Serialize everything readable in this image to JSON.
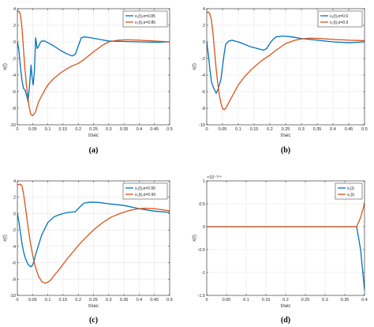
{
  "colors": {
    "x1": "#0072BD",
    "x2": "#D95319",
    "grid": "#e6e6e6",
    "axis": "#262626"
  },
  "chart_data": [
    {
      "type": "line",
      "caption": "(a)",
      "xlabel": "t/sec",
      "ylabel": "x(t)",
      "xlim": [
        0,
        0.5
      ],
      "ylim": [
        -10,
        4
      ],
      "xticks": [
        0,
        0.05,
        0.1,
        0.15,
        0.2,
        0.25,
        0.3,
        0.35,
        0.4,
        0.45,
        0.5
      ],
      "xtick_labels": [
        "0",
        "0.05",
        "0.1",
        "0.15",
        "0.2",
        "0.25",
        "0.3",
        "0.35",
        "0.4",
        "0.45",
        "0.5"
      ],
      "yticks": [
        -10,
        -8,
        -6,
        -4,
        -2,
        0,
        2,
        4
      ],
      "ytick_labels": [
        "-10",
        "-8",
        "-6",
        "-4",
        "-2",
        "0",
        "2",
        "4"
      ],
      "exponent_label": "",
      "grid": true,
      "legend_position": "top-right",
      "series": [
        {
          "name": "x₁(t),α=0.85",
          "color_key": "x1",
          "x": [
            0,
            0.005,
            0.01,
            0.015,
            0.02,
            0.025,
            0.03,
            0.035,
            0.04,
            0.045,
            0.048,
            0.052,
            0.056,
            0.06,
            0.065,
            0.07,
            0.075,
            0.08,
            0.09,
            0.1,
            0.12,
            0.14,
            0.16,
            0.18,
            0.19,
            0.2,
            0.21,
            0.22,
            0.24,
            0.27,
            0.3,
            0.35,
            0.4,
            0.45,
            0.5
          ],
          "y": [
            0,
            -1,
            -3,
            -4.6,
            -5.6,
            -5.8,
            -6.4,
            -7.2,
            -5.2,
            -2.8,
            -4.2,
            -5.2,
            -3.5,
            0.5,
            -0.8,
            -0.5,
            -0.1,
            0.1,
            0.1,
            -0.1,
            -0.5,
            -1.0,
            -1.4,
            -1.7,
            -1.5,
            -0.5,
            0.5,
            0.6,
            0.5,
            0.3,
            0.1,
            0.05,
            0.0,
            -0.05,
            0.0
          ]
        },
        {
          "name": "x₂(t),α=0.85",
          "color_key": "x2",
          "x": [
            0,
            0.005,
            0.01,
            0.015,
            0.02,
            0.025,
            0.03,
            0.035,
            0.04,
            0.045,
            0.05,
            0.055,
            0.06,
            0.065,
            0.07,
            0.08,
            0.09,
            0.1,
            0.12,
            0.14,
            0.16,
            0.18,
            0.2,
            0.22,
            0.25,
            0.28,
            0.3,
            0.33,
            0.36,
            0.4,
            0.45,
            0.5
          ],
          "y": [
            3.6,
            3.7,
            3.3,
            1.8,
            -0.8,
            -3.3,
            -5.3,
            -6.9,
            -8.1,
            -8.8,
            -8.9,
            -8.7,
            -8.4,
            -7.8,
            -7.2,
            -6.5,
            -5.8,
            -5.2,
            -4.4,
            -3.8,
            -3.3,
            -2.9,
            -2.6,
            -2.1,
            -1.2,
            -0.4,
            0.0,
            0.2,
            0.25,
            0.2,
            0.1,
            0.0
          ]
        }
      ]
    },
    {
      "type": "line",
      "caption": "(b)",
      "xlabel": "t/sec",
      "ylabel": "x(t)",
      "xlim": [
        0,
        0.5
      ],
      "ylim": [
        -10,
        4
      ],
      "xticks": [
        0,
        0.05,
        0.1,
        0.15,
        0.2,
        0.25,
        0.3,
        0.35,
        0.4,
        0.45,
        0.5
      ],
      "xtick_labels": [
        "0",
        "0.05",
        "0.1",
        "0.15",
        "0.2",
        "0.25",
        "0.3",
        "0.35",
        "0.4",
        "0.45",
        "0.5"
      ],
      "yticks": [
        -10,
        -8,
        -6,
        -4,
        -2,
        0,
        2,
        4
      ],
      "ytick_labels": [
        "-10",
        "-8",
        "-6",
        "-4",
        "-2",
        "0",
        "2",
        "4"
      ],
      "exponent_label": "",
      "grid": true,
      "legend_position": "top-right",
      "series": [
        {
          "name": "x₁(t),α=0.9",
          "color_key": "x1",
          "x": [
            0,
            0.005,
            0.01,
            0.015,
            0.02,
            0.025,
            0.03,
            0.035,
            0.04,
            0.045,
            0.05,
            0.055,
            0.06,
            0.07,
            0.08,
            0.09,
            0.1,
            0.12,
            0.14,
            0.16,
            0.18,
            0.19,
            0.2,
            0.21,
            0.22,
            0.24,
            0.27,
            0.3,
            0.35,
            0.4,
            0.45,
            0.5
          ],
          "y": [
            0,
            -1.5,
            -3.3,
            -4.8,
            -5.4,
            -5.8,
            -6.2,
            -5.8,
            -5.2,
            -4.5,
            -3.0,
            -1.5,
            -0.3,
            0.1,
            0.2,
            0.1,
            0.0,
            -0.3,
            -0.6,
            -0.8,
            -1.0,
            -0.8,
            -0.2,
            0.3,
            0.6,
            0.7,
            0.6,
            0.4,
            0.2,
            0.0,
            -0.1,
            0.0
          ]
        },
        {
          "name": "x₂(t),α=0.9",
          "color_key": "x2",
          "x": [
            0,
            0.005,
            0.01,
            0.015,
            0.02,
            0.025,
            0.03,
            0.035,
            0.04,
            0.045,
            0.05,
            0.055,
            0.06,
            0.065,
            0.07,
            0.08,
            0.09,
            0.1,
            0.12,
            0.14,
            0.16,
            0.18,
            0.2,
            0.22,
            0.25,
            0.28,
            0.3,
            0.33,
            0.36,
            0.4,
            0.45,
            0.5
          ],
          "y": [
            3.5,
            3.6,
            3.4,
            2.6,
            1.0,
            -1.2,
            -3.3,
            -5.0,
            -6.4,
            -7.4,
            -8.0,
            -8.2,
            -8.0,
            -7.7,
            -7.3,
            -6.6,
            -5.9,
            -5.2,
            -4.2,
            -3.4,
            -2.7,
            -2.1,
            -1.6,
            -1.0,
            -0.2,
            0.2,
            0.35,
            0.45,
            0.4,
            0.3,
            0.2,
            0.15
          ]
        }
      ]
    },
    {
      "type": "line",
      "caption": "(c)",
      "xlabel": "t/sec",
      "ylabel": "x(t)",
      "xlim": [
        0,
        0.5
      ],
      "ylim": [
        -10,
        4
      ],
      "xticks": [
        0,
        0.05,
        0.1,
        0.15,
        0.2,
        0.25,
        0.3,
        0.35,
        0.4,
        0.45,
        0.5
      ],
      "xtick_labels": [
        "0",
        "0.05",
        "0.1",
        "0.15",
        "0.2",
        "0.25",
        "0.3",
        "0.35",
        "0.4",
        "0.45",
        "0.5"
      ],
      "yticks": [
        -10,
        -8,
        -6,
        -4,
        -2,
        0,
        2,
        4
      ],
      "ytick_labels": [
        "-10",
        "-8",
        "-6",
        "-4",
        "-2",
        "0",
        "2",
        "4"
      ],
      "exponent_label": "",
      "grid": true,
      "legend_position": "top-right",
      "series": [
        {
          "name": "x₁(t),α=0.99",
          "color_key": "x1",
          "x": [
            0,
            0.005,
            0.01,
            0.015,
            0.02,
            0.025,
            0.03,
            0.035,
            0.04,
            0.045,
            0.05,
            0.055,
            0.06,
            0.07,
            0.08,
            0.1,
            0.12,
            0.14,
            0.16,
            0.18,
            0.19,
            0.2,
            0.21,
            0.22,
            0.24,
            0.27,
            0.3,
            0.35,
            0.4,
            0.45,
            0.5
          ],
          "y": [
            0,
            -1.0,
            -2.3,
            -3.6,
            -4.6,
            -5.3,
            -5.8,
            -6.2,
            -6.4,
            -6.5,
            -6.3,
            -5.8,
            -5.0,
            -3.8,
            -2.6,
            -1.1,
            -0.4,
            -0.1,
            0.1,
            0.2,
            0.2,
            0.6,
            1.0,
            1.3,
            1.4,
            1.35,
            1.2,
            1.0,
            0.6,
            0.3,
            0.15
          ]
        },
        {
          "name": "x₂(t),α=0.99",
          "color_key": "x2",
          "x": [
            0,
            0.01,
            0.015,
            0.02,
            0.025,
            0.03,
            0.035,
            0.04,
            0.045,
            0.05,
            0.055,
            0.06,
            0.07,
            0.08,
            0.09,
            0.1,
            0.11,
            0.12,
            0.14,
            0.16,
            0.18,
            0.2,
            0.22,
            0.25,
            0.28,
            0.31,
            0.34,
            0.37,
            0.4,
            0.42,
            0.45,
            0.48,
            0.5
          ],
          "y": [
            3.5,
            3.6,
            3.4,
            2.5,
            1.2,
            -0.2,
            -1.6,
            -2.9,
            -4.0,
            -5.0,
            -5.9,
            -6.6,
            -7.7,
            -8.3,
            -8.5,
            -8.4,
            -8.1,
            -7.6,
            -6.7,
            -5.7,
            -4.8,
            -3.9,
            -3.1,
            -2.0,
            -1.1,
            -0.4,
            0.05,
            0.4,
            0.6,
            0.65,
            0.6,
            0.45,
            0.35
          ]
        }
      ]
    },
    {
      "type": "line",
      "caption": "(d)",
      "xlabel": "t/sec",
      "ylabel": "x(t)",
      "xlim": [
        0,
        0.4
      ],
      "ylim": [
        -1.5,
        1
      ],
      "xticks": [
        0,
        0.05,
        0.1,
        0.15,
        0.2,
        0.25,
        0.3,
        0.35,
        0.4
      ],
      "xtick_labels": [
        "0",
        "0.05",
        "0.1",
        "0.15",
        "0.2",
        "0.25",
        "0.3",
        "0.35",
        "0.4"
      ],
      "yticks": [
        -1.5,
        -1,
        -0.5,
        0,
        0.5,
        1
      ],
      "ytick_labels": [
        "-1.5",
        "-1",
        "-0.5",
        "0",
        "0.5",
        "1"
      ],
      "exponent_label": "×10⁻¹⁵⁴",
      "grid": true,
      "legend_position": "top-right",
      "series": [
        {
          "name": "x₁(t)",
          "color_key": "x1",
          "x": [
            0,
            0.1,
            0.2,
            0.3,
            0.38,
            0.39,
            0.4
          ],
          "y": [
            0,
            0,
            0,
            0,
            0,
            -0.5,
            -1.38
          ]
        },
        {
          "name": "x₂(t)",
          "color_key": "x2",
          "x": [
            0,
            0.1,
            0.2,
            0.3,
            0.38,
            0.39,
            0.4
          ],
          "y": [
            0,
            0,
            0,
            0,
            0,
            0.2,
            0.5
          ]
        }
      ]
    }
  ]
}
